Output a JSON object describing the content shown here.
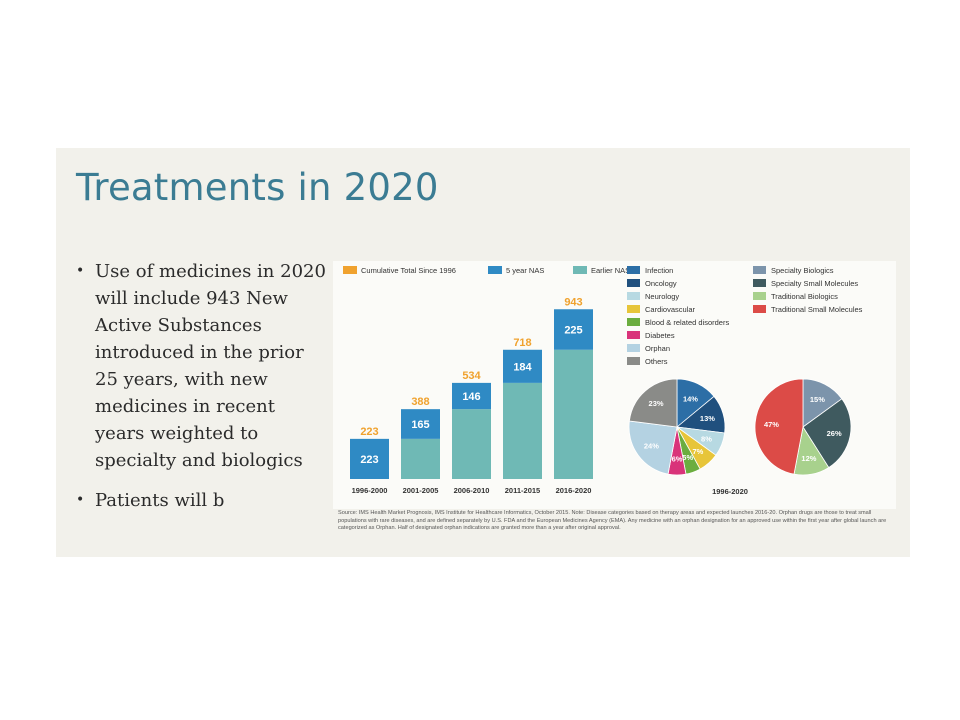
{
  "slide": {
    "title": "Treatments in 2020",
    "bullets": [
      {
        "text": "Use of medicines in 2020 will include 943 New Active Substances introduced in the prior 25 years, with new medicines in recent years weighted to specialty and biologics"
      },
      {
        "text": "Patients will b"
      }
    ],
    "note": "Source: IMS Health Market Prognosis, IMS Institute for Healthcare Informatics, October 2015. Note: Disease categories based on therapy areas and expected launches 2016-20. Orphan drugs are those to treat small populations with rare diseases, and are defined separately by U.S. FDA and the European Medicines Agency (EMA). Any medicine with an orphan designation for an approved use within the first year after global launch are categorized as Orphan. Half of designated orphan indications are granted more than a year after original approval."
  },
  "colors": {
    "cumulative": "#f0a22e",
    "five_year": "#2f8ac4",
    "earlier": "#6fb9b5",
    "title": "#3b7c93"
  },
  "chart_data": [
    {
      "type": "bar",
      "categories": [
        "1996-2000",
        "2001-2005",
        "2006-2010",
        "2011-2015",
        "2016-2020"
      ],
      "series": [
        {
          "name": "Earlier NAS",
          "values": [
            0,
            223,
            388,
            534,
            718
          ]
        },
        {
          "name": "5 year NAS",
          "values": [
            223,
            165,
            146,
            184,
            225
          ]
        }
      ],
      "totals": {
        "name": "Cumulative Total Since 1996",
        "values": [
          223,
          388,
          534,
          718,
          943
        ]
      },
      "legend": [
        {
          "label": "Cumulative Total Since 1996",
          "color": "#f0a22e"
        },
        {
          "label": "5 year NAS",
          "color": "#2f8ac4"
        },
        {
          "label": "Earlier NAS",
          "color": "#6fb9b5"
        }
      ],
      "ylim": [
        0,
        1000
      ],
      "grid": false,
      "legend_position": "top"
    },
    {
      "type": "pie",
      "xlabel": "1996-2020",
      "slices": [
        {
          "label": "Infection",
          "value": 14,
          "color": "#2c6ea6",
          "text": "14%"
        },
        {
          "label": "Oncology",
          "value": 13,
          "color": "#20507e",
          "text": "13%"
        },
        {
          "label": "Neurology",
          "value": 8,
          "color": "#b7d9e2",
          "text": "8%"
        },
        {
          "label": "Cardiovascular",
          "value": 7,
          "color": "#e7c53a",
          "text": "7%"
        },
        {
          "label": "Blood & related disorders",
          "value": 5,
          "color": "#6bad3f",
          "text": "5%"
        },
        {
          "label": "Diabetes",
          "value": 6,
          "color": "#d9337a",
          "text": "6%"
        },
        {
          "label": "Orphan",
          "value": 24,
          "color": "#b4d2e2",
          "text": "24%"
        },
        {
          "label": "Others",
          "value": 23,
          "color": "#8a8b88",
          "text": "23%"
        }
      ],
      "legend_position": "top"
    },
    {
      "type": "pie",
      "slices": [
        {
          "label": "Specialty Biologics",
          "value": 15,
          "color": "#7c94ab",
          "text": "15%"
        },
        {
          "label": "Specialty Small Molecules",
          "value": 26,
          "color": "#3f5a5f",
          "text": "26%"
        },
        {
          "label": "Traditional Biologics",
          "value": 12,
          "color": "#a8d18d",
          "text": "12%"
        },
        {
          "label": "Traditional Small Molecules",
          "value": 47,
          "color": "#dc4b47",
          "text": "47%"
        }
      ],
      "legend_position": "top"
    }
  ]
}
